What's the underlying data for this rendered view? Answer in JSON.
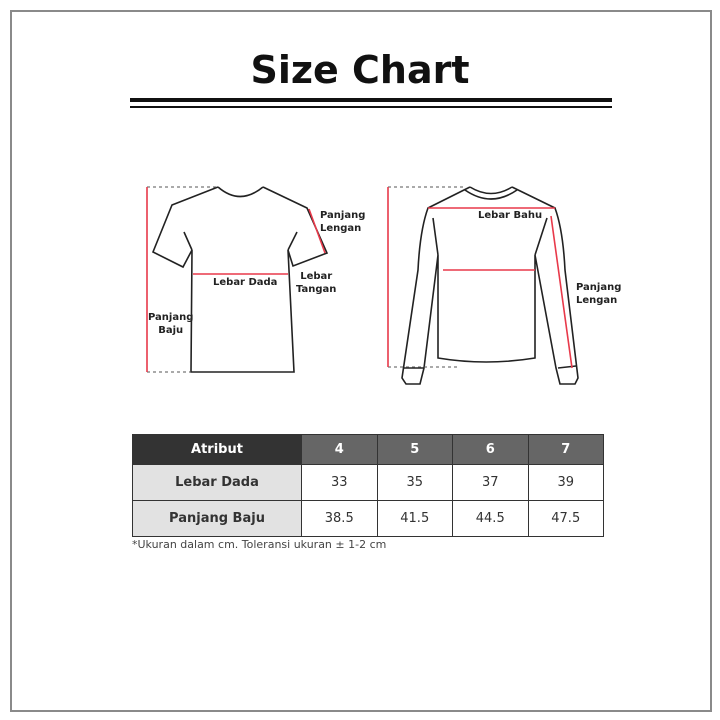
{
  "title": "Size Chart",
  "colors": {
    "measure_line": "#e8394a",
    "header_dark": "#333333",
    "header_mid": "#666666",
    "attr_cell": "#e2e2e2"
  },
  "tshirt_labels": {
    "sleeve_length": [
      "Panjang",
      "Lengan"
    ],
    "chest_width": "Lebar Dada",
    "sleeve_width": [
      "Lebar",
      "Tangan"
    ],
    "body_length": [
      "Panjang",
      "Baju"
    ]
  },
  "longsleeve_labels": {
    "shoulder_width": "Lebar Bahu",
    "sleeve_length": [
      "Panjang",
      "Lengan"
    ]
  },
  "table": {
    "headers": [
      "Atribut",
      "4",
      "5",
      "6",
      "7"
    ],
    "rows": [
      {
        "label": "Lebar Dada",
        "values": [
          "33",
          "35",
          "37",
          "39"
        ]
      },
      {
        "label": "Panjang Baju",
        "values": [
          "38.5",
          "41.5",
          "44.5",
          "47.5"
        ]
      }
    ]
  },
  "note": "*Ukuran dalam cm. Toleransi ukuran ± 1-2 cm"
}
